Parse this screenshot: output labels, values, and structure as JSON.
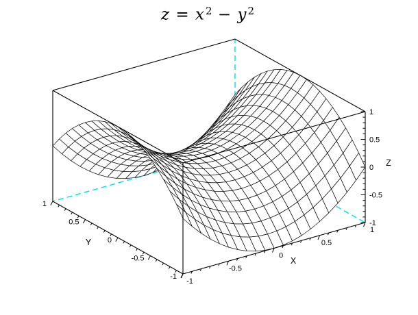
{
  "title": {
    "plain": "z = x² − y²",
    "var1": "z",
    "eq": " = ",
    "var2": "x",
    "sup1": "2",
    "minus": " − ",
    "var3": "y",
    "sup2": "2"
  },
  "chart_data": {
    "type": "surface",
    "title": "z = x^2 - y^2",
    "surface_fn": "x*x - y*y",
    "x_range": [
      -1,
      1
    ],
    "y_range": [
      -1,
      1
    ],
    "z_range": [
      -1,
      1
    ],
    "grid_points": 21,
    "grid_step": 0.1,
    "axes": {
      "x": {
        "label": "X",
        "tick_values": [
          -1,
          -0.5,
          0,
          0.5,
          1
        ],
        "tick_labels": [
          "-1",
          "-0.5",
          "0",
          "0.5",
          "1"
        ],
        "minor_tick_step": 0.1
      },
      "y": {
        "label": "Y",
        "tick_values": [
          1,
          0.5,
          0,
          -0.5,
          -1
        ],
        "tick_labels": [
          "1",
          "0.5",
          "0",
          "-0.5",
          "-1"
        ],
        "minor_tick_step": 0.1
      },
      "z": {
        "label": "Z",
        "tick_values": [
          1,
          0.5,
          0,
          -0.5,
          -1
        ],
        "tick_labels": [
          "1",
          "0.5",
          "0",
          "-0.5",
          "-1"
        ],
        "minor_tick_step": 0.1
      }
    },
    "style": {
      "mesh_line_color": "#111111",
      "facet_color": "#ffffff",
      "hidden_edge_color": "#00e5ee",
      "axis_color": "#000000",
      "background": "#ffffff"
    },
    "projection": {
      "origin": [
        305,
        228.5
      ],
      "ex": [
        133,
        -37.5
      ],
      "ey": [
        -95,
        -53
      ],
      "ez": [
        0,
        -81
      ]
    },
    "legend": "none",
    "grid": "mesh-wireframe, hidden box edges dashed"
  }
}
